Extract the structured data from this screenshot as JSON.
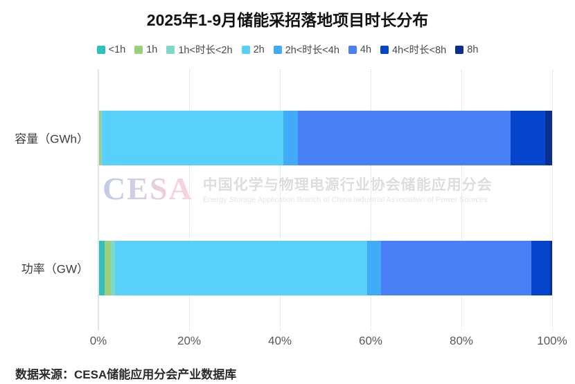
{
  "chart_data": {
    "type": "bar",
    "orientation": "horizontal",
    "stacked": true,
    "title": "2025年1-9月储能采招落地项目时长分布",
    "categories": [
      "容量（GWh）",
      "功率（GW）"
    ],
    "unit": "%",
    "series": [
      {
        "name": "<1h",
        "color": "#30C0BE",
        "values": [
          0.2,
          1.4
        ]
      },
      {
        "name": "1h",
        "color": "#9CCF7D",
        "values": [
          0.4,
          1.4
        ]
      },
      {
        "name": "1h<时长<2h",
        "color": "#7FD9C6",
        "values": [
          0.2,
          0.8
        ]
      },
      {
        "name": "2h",
        "color": "#58D0FA",
        "values": [
          39.9,
          55.7
        ]
      },
      {
        "name": "2h<时长<4h",
        "color": "#41ABF7",
        "values": [
          3.2,
          3.0
        ]
      },
      {
        "name": "4h",
        "color": "#4A80F5",
        "values": [
          47.0,
          33.1
        ]
      },
      {
        "name": "4h<时长<8h",
        "color": "#0545CB",
        "values": [
          7.6,
          4.1
        ]
      },
      {
        "name": "8h",
        "color": "#0A2F8F",
        "values": [
          1.5,
          0.5
        ]
      }
    ],
    "x_ticks": [
      "0%",
      "20%",
      "40%",
      "60%",
      "80%",
      "100%"
    ],
    "xlim": [
      0,
      100
    ],
    "legend_position": "top",
    "grid": "vertical-dotted"
  },
  "watermark": {
    "logo": "CESA",
    "cn": "中国化学与物理电源行业协会储能应用分会",
    "en": "Energy Storage Application Branch of China Industrial Association of Power Sources"
  },
  "source": "数据来源：CESA储能应用分会产业数据库"
}
